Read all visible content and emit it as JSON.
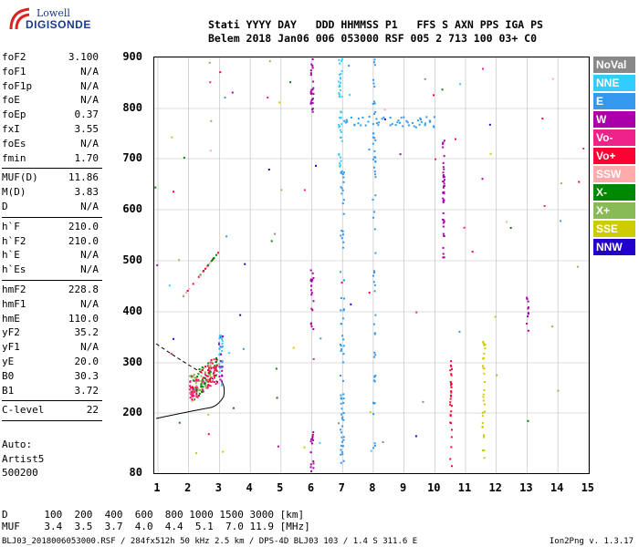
{
  "logo": {
    "line1": "Lowell",
    "line2": "DIGISONDE"
  },
  "header": {
    "line1": "Stati YYYY DAY   DDD HHMMSS P1   FFS S AXN PPS IGA PS",
    "line2": "Belem 2018 Jan06 006 053000 RSF 005 2 713 100 03+ C0"
  },
  "params": [
    {
      "label": "foF2",
      "value": "3.100"
    },
    {
      "label": "foF1",
      "value": "N/A"
    },
    {
      "label": "foF1p",
      "value": "N/A"
    },
    {
      "label": "foE",
      "value": "N/A"
    },
    {
      "label": "foEp",
      "value": "0.37"
    },
    {
      "label": "fxI",
      "value": "3.55"
    },
    {
      "label": "foEs",
      "value": "N/A"
    },
    {
      "label": "fmin",
      "value": "1.70"
    },
    {
      "sep": true
    },
    {
      "label": "MUF(D)",
      "value": "11.86"
    },
    {
      "label": "M(D)",
      "value": "3.83"
    },
    {
      "label": "D",
      "value": "N/A"
    },
    {
      "sep": true
    },
    {
      "label": "h`F",
      "value": "210.0"
    },
    {
      "label": "h`F2",
      "value": "210.0"
    },
    {
      "label": "h`E",
      "value": "N/A"
    },
    {
      "label": "h`Es",
      "value": "N/A"
    },
    {
      "sep": true
    },
    {
      "label": "hmF2",
      "value": "228.8"
    },
    {
      "label": "hmF1",
      "value": "N/A"
    },
    {
      "label": "hmE",
      "value": "110.0"
    },
    {
      "label": "yF2",
      "value": "35.2"
    },
    {
      "label": "yF1",
      "value": "N/A"
    },
    {
      "label": "yE",
      "value": "20.0"
    },
    {
      "label": "B0",
      "value": "30.3"
    },
    {
      "label": "B1",
      "value": "3.72"
    },
    {
      "sep": true
    },
    {
      "label": "C-level",
      "value": "22"
    },
    {
      "sep": true
    }
  ],
  "auto": {
    "line1": "Auto:",
    "line2": "Artist5",
    "line3": "500200"
  },
  "axes": {
    "y_ticks": [
      "900",
      "800",
      "700",
      "600",
      "500",
      "400",
      "300",
      "200",
      "80"
    ],
    "x_ticks": [
      "1",
      "2",
      "3",
      "4",
      "5",
      "6",
      "7",
      "8",
      "9",
      "10",
      "11",
      "12",
      "13",
      "14",
      "15"
    ]
  },
  "legend": [
    {
      "label": "NoVal",
      "color": "#888888"
    },
    {
      "label": "NNE",
      "color": "#33ccff"
    },
    {
      "label": "E",
      "color": "#3399ee"
    },
    {
      "label": "W",
      "color": "#aa00aa"
    },
    {
      "label": "Vo-",
      "color": "#ee2288"
    },
    {
      "label": "Vo+",
      "color": "#ff0033"
    },
    {
      "label": "SSW",
      "color": "#ffaaaa"
    },
    {
      "label": "X-",
      "color": "#008800"
    },
    {
      "label": "X+",
      "color": "#88bb55"
    },
    {
      "label": "SSE",
      "color": "#cccc00"
    },
    {
      "label": "NNW",
      "color": "#2200cc"
    }
  ],
  "dist": {
    "line1": "D      100  200  400  600  800 1000 1500 3000 [km]",
    "line2": "MUF    3.4  3.5  3.7  4.0  4.4  5.1  7.0 11.9 [MHz]"
  },
  "footer": {
    "text": "BLJ03_2018006053000.RSF / 284fx512h 50 kHz 2.5 km / DPS-4D BLJ03 103 / 1.4 S 311.6 E",
    "version": "Ion2Png v. 1.3.17"
  }
}
